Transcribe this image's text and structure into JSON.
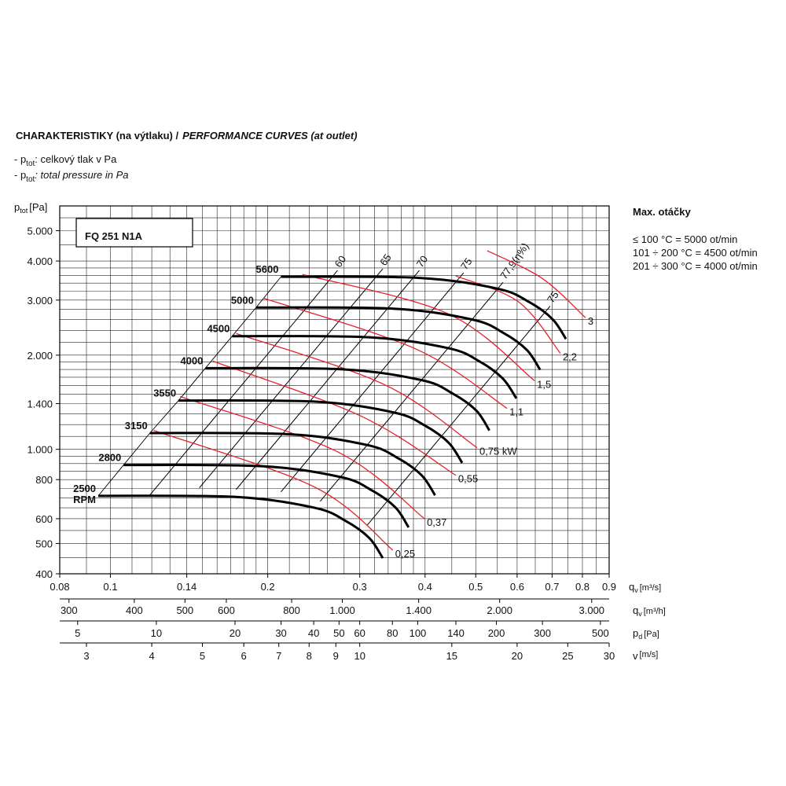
{
  "chart_data": {
    "type": "line",
    "title": "CHARAKTERISTIKY (na výtlaku) /",
    "title_italic": "PERFORMANCE CURVES (at outlet)",
    "notes": [
      {
        "prefix": "- p",
        "sub": "tot",
        "text": ": celkový tlak v Pa",
        "italic": false
      },
      {
        "prefix": "- p",
        "sub": "tot",
        "text": ": total pressure in Pa",
        "italic": true
      }
    ],
    "model": "FQ 251 N1A",
    "ylabel": {
      "main": "p",
      "sub": "tot",
      "unit": "[Pa]"
    },
    "max_speed": {
      "title": "Max. otáčky",
      "lines": [
        "≤ 100 °C = 5000 ot/min",
        "101 ÷ 200 °C = 4500 ot/min",
        "201 ÷ 300 °C = 4000 ot/min"
      ]
    },
    "log_x": true,
    "log_y": true,
    "xlim": [
      0.08,
      0.9
    ],
    "ylim": [
      400,
      6000
    ],
    "xticks": [
      0.08,
      0.1,
      0.14,
      0.2,
      0.3,
      0.4,
      0.5,
      0.6,
      0.7,
      0.8,
      0.9
    ],
    "yticks": [
      400,
      500,
      600,
      800,
      {
        "value": 1000,
        "label": "1.000"
      },
      {
        "value": 1400,
        "label": "1.400"
      },
      {
        "value": 2000,
        "label": "2.000"
      },
      {
        "value": 3000,
        "label": "3.000"
      },
      {
        "value": 4000,
        "label": "4.000"
      },
      {
        "value": 5000,
        "label": "5.000"
      }
    ],
    "xgrid": [
      0.08,
      0.09,
      0.1,
      0.11,
      0.12,
      0.13,
      0.14,
      0.15,
      0.16,
      0.17,
      0.18,
      0.19,
      0.2,
      0.22,
      0.24,
      0.26,
      0.28,
      0.3,
      0.32,
      0.34,
      0.36,
      0.38,
      0.4,
      0.45,
      0.5,
      0.55,
      0.6,
      0.65,
      0.7,
      0.75,
      0.8,
      0.85,
      0.9
    ],
    "ygrid": [
      400,
      450,
      500,
      550,
      600,
      650,
      700,
      750,
      800,
      850,
      900,
      950,
      1000,
      1100,
      1200,
      1300,
      1400,
      1500,
      1600,
      1700,
      1800,
      1900,
      2000,
      2200,
      2400,
      2600,
      2800,
      3000,
      3200,
      3400,
      3600,
      3800,
      4000,
      4500,
      5000,
      5500,
      6000
    ],
    "grid": true,
    "xlabel": {
      "main": "q",
      "sub": "v",
      "unit": "[m³/s]"
    },
    "secondary_axes": [
      {
        "lim": [
          288,
          3240
        ],
        "ticks": [
          300,
          400,
          500,
          600,
          800,
          {
            "value": 1000,
            "label": "1.000"
          },
          {
            "value": 1400,
            "label": "1.400"
          },
          {
            "value": 2000,
            "label": "2.000"
          },
          {
            "value": 3000,
            "label": "3.000"
          }
        ],
        "label": {
          "main": "q",
          "sub": "v",
          "unit": "[m³/h]"
        }
      },
      {
        "lim": [
          4.27,
          540
        ],
        "ticks": [
          5,
          10,
          20,
          30,
          40,
          50,
          60,
          80,
          100,
          140,
          200,
          300,
          500
        ],
        "label": {
          "main": "p",
          "sub": "d",
          "unit": "[Pa]"
        }
      },
      {
        "lim": [
          2.667,
          30
        ],
        "ticks": [
          3,
          4,
          5,
          6,
          7,
          8,
          9,
          10,
          15,
          20,
          25,
          30
        ],
        "label": {
          "main": "v",
          "sub": "",
          "unit": "[m/s]"
        }
      }
    ],
    "rpm_unit": "RPM",
    "rpm_color": "#000000",
    "power_color": "#e8202a",
    "eff_color": "#000000",
    "series": [
      {
        "name": "5600",
        "x": [
          0.212,
          0.39,
          0.551,
          0.632,
          0.701,
          0.744
        ],
        "values": [
          3562,
          3532,
          3261,
          2960,
          2609,
          2253
        ]
      },
      {
        "name": "5000",
        "x": [
          0.19,
          0.348,
          0.492,
          0.564,
          0.626,
          0.664
        ],
        "values": [
          2840,
          2816,
          2600,
          2360,
          2080,
          1796
        ]
      },
      {
        "name": "4500",
        "x": [
          0.171,
          0.313,
          0.443,
          0.508,
          0.563,
          0.598
        ],
        "values": [
          2300,
          2281,
          2106,
          1912,
          1685,
          1455
        ]
      },
      {
        "name": "4000",
        "x": [
          0.152,
          0.278,
          0.394,
          0.451,
          0.501,
          0.531
        ],
        "values": [
          1818,
          1802,
          1664,
          1510,
          1331,
          1149
        ]
      },
      {
        "name": "3550",
        "x": [
          0.135,
          0.247,
          0.349,
          0.4,
          0.444,
          0.471
        ],
        "values": [
          1432,
          1420,
          1311,
          1190,
          1049,
          905
        ]
      },
      {
        "name": "3150",
        "x": [
          0.119,
          0.219,
          0.31,
          0.355,
          0.394,
          0.418
        ],
        "values": [
          1127,
          1118,
          1032,
          937,
          826,
          713
        ]
      },
      {
        "name": "2800",
        "x": [
          0.106,
          0.195,
          0.276,
          0.316,
          0.351,
          0.372
        ],
        "values": [
          891,
          883,
          815,
          740,
          652,
          563
        ]
      },
      {
        "name": "2500",
        "x": [
          0.0948,
          0.174,
          0.246,
          0.282,
          0.313,
          0.332
        ],
        "values": [
          710,
          704,
          650,
          590,
          520,
          449
        ]
      }
    ],
    "power_curves": [
      {
        "name": "3",
        "x": [
          0.526,
          0.67,
          0.811
        ],
        "values": [
          4315,
          3520,
          2636
        ]
      },
      {
        "name": "2,2",
        "x": [
          0.458,
          0.604,
          0.726
        ],
        "values": [
          3584,
          2960,
          2028
        ]
      },
      {
        "name": "1,5",
        "x": [
          0.233,
          0.443,
          0.648
        ],
        "values": [
          3624,
          2711,
          1657
        ]
      },
      {
        "name": "1,1",
        "x": [
          0.196,
          0.385,
          0.574
        ],
        "values": [
          3045,
          2089,
          1352
        ]
      },
      {
        "name": "0,75 kW",
        "x": [
          0.174,
          0.335,
          0.503
        ],
        "values": [
          2347,
          1608,
          1012
        ]
      },
      {
        "name": "0,55",
        "x": [
          0.157,
          0.302,
          0.458
        ],
        "values": [
          1915,
          1276,
          826
        ]
      },
      {
        "name": "0,37",
        "x": [
          0.136,
          0.272,
          0.399
        ],
        "values": [
          1475,
          982,
          600
        ]
      },
      {
        "name": "0,25",
        "x": [
          0.121,
          0.246,
          0.347
        ],
        "values": [
          1149,
          757,
          476
        ]
      }
    ],
    "efficiency_lines": [
      {
        "name": "60",
        "x": [
          0.119,
          0.272
        ],
        "values": [
          714,
          3731
        ]
      },
      {
        "name": "65",
        "x": [
          0.148,
          0.332
        ],
        "values": [
          753,
          3776
        ]
      },
      {
        "name": "70",
        "x": [
          0.174,
          0.39
        ],
        "values": [
          744,
          3731
        ]
      },
      {
        "name": "75",
        "x": [
          0.212,
          0.474
        ],
        "values": [
          731,
          3667
        ]
      },
      {
        "name": "77,9(η%)",
        "x": [
          0.252,
          0.564
        ],
        "values": [
          682,
          3420
        ]
      },
      {
        "name": "75",
        "x": [
          0.31,
          0.694
        ],
        "values": [
          572,
          2871
        ]
      }
    ]
  }
}
